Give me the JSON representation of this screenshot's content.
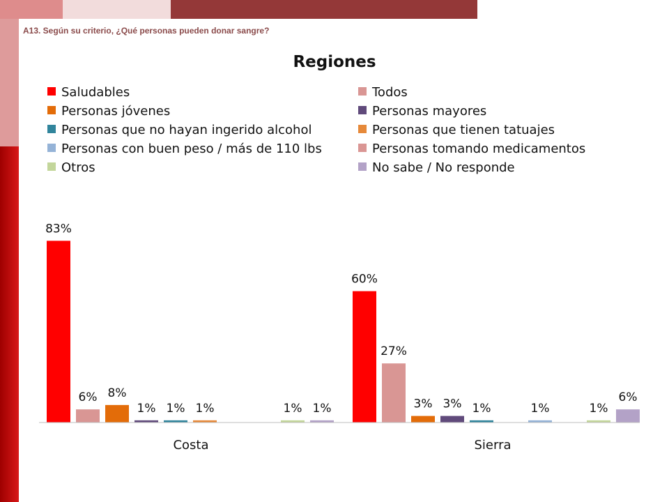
{
  "question": "A13. Según su criterio, ¿Qué personas pueden donar sangre?",
  "chart_data": {
    "type": "bar",
    "title": "Regiones",
    "categories": [
      "Costa",
      "Sierra"
    ],
    "series": [
      {
        "name": "Saludables",
        "color": "#ff0000",
        "values": [
          83,
          60
        ],
        "labels": [
          "83%",
          "60%"
        ]
      },
      {
        "name": "Todos",
        "color": "#d99694",
        "values": [
          6,
          27
        ],
        "labels": [
          "6%",
          "27%"
        ]
      },
      {
        "name": "Personas jóvenes",
        "color": "#e36c09",
        "values": [
          8,
          3
        ],
        "labels": [
          "8%",
          "3%"
        ]
      },
      {
        "name": "Personas mayores",
        "color": "#604a7b",
        "values": [
          1,
          3
        ],
        "labels": [
          "1%",
          "3%"
        ]
      },
      {
        "name": "Personas que no hayan ingerido alcohol",
        "color": "#31859c",
        "values": [
          1,
          1
        ],
        "labels": [
          "1%",
          "1%"
        ]
      },
      {
        "name": "Personas que tienen tatuajes",
        "color": "#e6893a",
        "values": [
          1,
          null
        ],
        "labels": [
          "1%",
          ""
        ]
      },
      {
        "name": "Personas con buen peso / más de 110 lbs",
        "color": "#95b3d7",
        "values": [
          null,
          1
        ],
        "labels": [
          "",
          "1%"
        ]
      },
      {
        "name": "Personas tomando medicamentos",
        "color": "#da9694",
        "values": [
          null,
          null
        ],
        "labels": [
          "",
          ""
        ]
      },
      {
        "name": "Otros",
        "color": "#c3d69b",
        "values": [
          1,
          1
        ],
        "labels": [
          "1%",
          "1%"
        ]
      },
      {
        "name": "No sabe / No responde",
        "color": "#b3a2c7",
        "values": [
          1,
          6
        ],
        "labels": [
          "1%",
          "6%"
        ]
      }
    ],
    "legend_position": "top",
    "ylim": [
      0,
      100
    ]
  }
}
